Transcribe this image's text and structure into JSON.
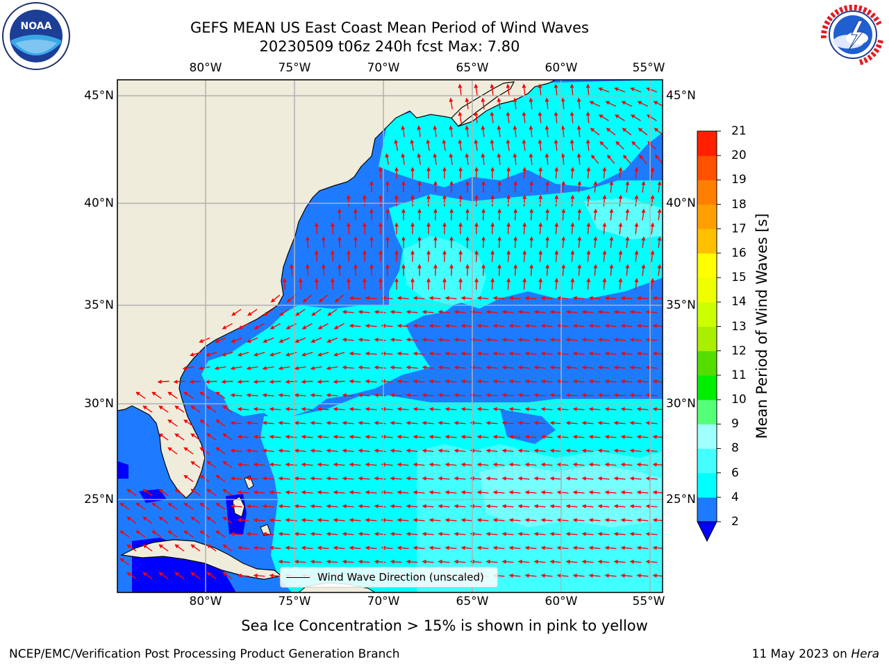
{
  "title_line1": "GEFS MEAN US East Coast Mean Period of Wind Waves",
  "title_line2": "20230509 t06z 240h fcst   Max: 7.80",
  "logos": {
    "left": {
      "icon": "noaa-logo",
      "text": "NOAA",
      "ring_text": "NATIONAL OCEANIC AND ATMOSPHERIC ADMINISTRATION · U.S. DEPARTMENT OF COMMERCE"
    },
    "right": {
      "icon": "national-weather-service-logo",
      "ring_text": "NATIONAL WEATHER SERVICE"
    }
  },
  "map": {
    "lon_ticks": [
      "80°W",
      "75°W",
      "70°W",
      "65°W",
      "60°W",
      "55°W"
    ],
    "lat_ticks_left": [
      "45°N",
      "40°N",
      "35°N",
      "30°N",
      "25°N"
    ],
    "lat_ticks_right": [
      "45°N",
      "40°N",
      "35°N",
      "30°N",
      "25°N"
    ],
    "extent": {
      "lon": [
        -85,
        -54.3
      ],
      "lat": [
        20.5,
        46
      ]
    },
    "land_color": "#efecdc",
    "grid_color": "#b0b0b0",
    "arrow_color": "#ff0000",
    "legend_label": "Wind Wave Direction (unscaled)"
  },
  "colorbar": {
    "label": "Mean Period of Wind Waves [s]",
    "tick_labels": [
      "2",
      "4",
      "6",
      "8",
      "9",
      "10",
      "11",
      "12",
      "13",
      "14",
      "15",
      "16",
      "17",
      "18",
      "19",
      "20",
      "21"
    ],
    "colors": [
      "#0000ff",
      "#1e7bff",
      "#00ffff",
      "#44ffff",
      "#a0ffff",
      "#55ff77",
      "#00ee00",
      "#55dd00",
      "#aaee00",
      "#ccff00",
      "#eeff00",
      "#ffff00",
      "#ffc000",
      "#ffa000",
      "#ff8000",
      "#ff5000",
      "#ff2000",
      "#ff0000"
    ]
  },
  "footer": {
    "sea_ice_note": "Sea Ice Concentration > 15% is shown in pink to yellow",
    "producer": "NCEP/EMC/Verification Post Processing Product Generation Branch",
    "date_prefix": "11 May 2023 on ",
    "machine": "Hera"
  }
}
